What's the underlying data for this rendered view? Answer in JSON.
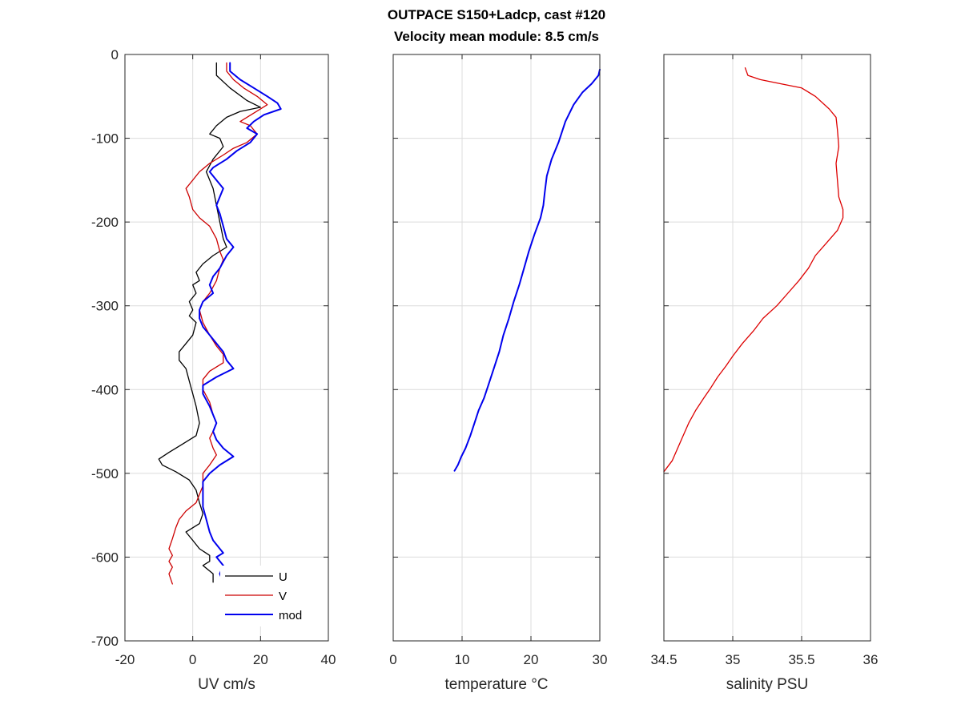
{
  "figure": {
    "title_line1": "OUTPACE S150+Ladcp, cast #120",
    "title_line2": "Velocity mean module:  8.5 cm/s"
  },
  "chart_data": [
    {
      "type": "line",
      "xlabel": "UV cm/s",
      "ylabel": "",
      "xlim": [
        -20,
        40
      ],
      "ylim": [
        -700,
        0
      ],
      "xticks": [
        -20,
        0,
        20,
        40
      ],
      "yticks": [
        0,
        -100,
        -200,
        -300,
        -400,
        -500,
        -600,
        -700
      ],
      "grid": true,
      "legend": {
        "position": "bottom-right",
        "entries": [
          "U",
          "V",
          "mod"
        ]
      },
      "series": [
        {
          "name": "U",
          "color": "#000000",
          "points": [
            [
              7,
              -10
            ],
            [
              7,
              -25
            ],
            [
              11,
              -40
            ],
            [
              16,
              -55
            ],
            [
              20,
              -63
            ],
            [
              14,
              -68
            ],
            [
              10,
              -75
            ],
            [
              7,
              -85
            ],
            [
              5,
              -95
            ],
            [
              8,
              -100
            ],
            [
              9,
              -110
            ],
            [
              6,
              -125
            ],
            [
              4,
              -140
            ],
            [
              6,
              -160
            ],
            [
              7,
              -180
            ],
            [
              8,
              -200
            ],
            [
              9,
              -220
            ],
            [
              10,
              -230
            ],
            [
              6,
              -240
            ],
            [
              3,
              -250
            ],
            [
              1,
              -260
            ],
            [
              2,
              -270
            ],
            [
              0,
              -275
            ],
            [
              1,
              -285
            ],
            [
              -1,
              -295
            ],
            [
              0,
              -305
            ],
            [
              -1,
              -312
            ],
            [
              1,
              -320
            ],
            [
              0,
              -335
            ],
            [
              -2,
              -345
            ],
            [
              -4,
              -355
            ],
            [
              -4,
              -365
            ],
            [
              -2,
              -375
            ],
            [
              -1,
              -390
            ],
            [
              0,
              -405
            ],
            [
              1,
              -420
            ],
            [
              2,
              -440
            ],
            [
              1,
              -455
            ],
            [
              -3,
              -465
            ],
            [
              -7,
              -475
            ],
            [
              -10,
              -483
            ],
            [
              -9,
              -490
            ],
            [
              -5,
              -498
            ],
            [
              -1,
              -508
            ],
            [
              1,
              -520
            ],
            [
              2,
              -535
            ],
            [
              3,
              -548
            ],
            [
              2,
              -560
            ],
            [
              -2,
              -570
            ],
            [
              0,
              -580
            ],
            [
              2,
              -590
            ],
            [
              5,
              -598
            ],
            [
              5,
              -605
            ],
            [
              3,
              -610
            ],
            [
              6,
              -620
            ],
            [
              6,
              -630
            ]
          ]
        },
        {
          "name": "V",
          "color": "#cc0000",
          "points": [
            [
              10,
              -10
            ],
            [
              10,
              -20
            ],
            [
              12,
              -30
            ],
            [
              15,
              -40
            ],
            [
              19,
              -50
            ],
            [
              22,
              -60
            ],
            [
              18,
              -70
            ],
            [
              16,
              -75
            ],
            [
              14,
              -80
            ],
            [
              17,
              -85
            ],
            [
              19,
              -95
            ],
            [
              16,
              -105
            ],
            [
              12,
              -112
            ],
            [
              9,
              -120
            ],
            [
              5,
              -130
            ],
            [
              2,
              -140
            ],
            [
              0,
              -150
            ],
            [
              -2,
              -160
            ],
            [
              -1,
              -170
            ],
            [
              0,
              -185
            ],
            [
              2,
              -195
            ],
            [
              5,
              -205
            ],
            [
              7,
              -220
            ],
            [
              8,
              -235
            ],
            [
              9,
              -245
            ],
            [
              8,
              -255
            ],
            [
              7,
              -270
            ],
            [
              5,
              -285
            ],
            [
              3,
              -295
            ],
            [
              2,
              -305
            ],
            [
              3,
              -320
            ],
            [
              5,
              -335
            ],
            [
              7,
              -348
            ],
            [
              9,
              -358
            ],
            [
              9,
              -368
            ],
            [
              5,
              -378
            ],
            [
              3,
              -388
            ],
            [
              3,
              -400
            ],
            [
              5,
              -415
            ],
            [
              6,
              -430
            ],
            [
              7,
              -440
            ],
            [
              6,
              -450
            ],
            [
              5,
              -458
            ],
            [
              6,
              -470
            ],
            [
              7,
              -478
            ],
            [
              5,
              -490
            ],
            [
              3,
              -500
            ],
            [
              3,
              -515
            ],
            [
              2,
              -525
            ],
            [
              1,
              -535
            ],
            [
              -2,
              -545
            ],
            [
              -4,
              -555
            ],
            [
              -5,
              -565
            ],
            [
              -6,
              -578
            ],
            [
              -7,
              -590
            ],
            [
              -6,
              -598
            ],
            [
              -7,
              -605
            ],
            [
              -6,
              -612
            ],
            [
              -7,
              -620
            ],
            [
              -6,
              -632
            ]
          ]
        },
        {
          "name": "mod",
          "color": "#0000ee",
          "points": [
            [
              11,
              -10
            ],
            [
              11,
              -20
            ],
            [
              14,
              -30
            ],
            [
              18,
              -40
            ],
            [
              22,
              -50
            ],
            [
              25,
              -58
            ],
            [
              26,
              -65
            ],
            [
              21,
              -72
            ],
            [
              18,
              -80
            ],
            [
              16,
              -88
            ],
            [
              19,
              -95
            ],
            [
              17,
              -105
            ],
            [
              13,
              -115
            ],
            [
              10,
              -125
            ],
            [
              6,
              -135
            ],
            [
              5,
              -140
            ],
            [
              7,
              -150
            ],
            [
              9,
              -160
            ],
            [
              8,
              -170
            ],
            [
              7,
              -180
            ],
            [
              8,
              -190
            ],
            [
              9,
              -205
            ],
            [
              10,
              -220
            ],
            [
              12,
              -230
            ],
            [
              10,
              -240
            ],
            [
              8,
              -255
            ],
            [
              6,
              -265
            ],
            [
              5,
              -275
            ],
            [
              6,
              -285
            ],
            [
              3,
              -295
            ],
            [
              2,
              -305
            ],
            [
              2,
              -315
            ],
            [
              3,
              -325
            ],
            [
              5,
              -335
            ],
            [
              7,
              -345
            ],
            [
              9,
              -355
            ],
            [
              10,
              -365
            ],
            [
              12,
              -375
            ],
            [
              7,
              -385
            ],
            [
              3,
              -395
            ],
            [
              3,
              -405
            ],
            [
              5,
              -420
            ],
            [
              6,
              -430
            ],
            [
              7,
              -440
            ],
            [
              6,
              -450
            ],
            [
              7,
              -460
            ],
            [
              9,
              -470
            ],
            [
              12,
              -480
            ],
            [
              8,
              -490
            ],
            [
              5,
              -500
            ],
            [
              3,
              -510
            ],
            [
              3,
              -525
            ],
            [
              3,
              -540
            ],
            [
              4,
              -555
            ],
            [
              5,
              -570
            ],
            [
              6,
              -580
            ],
            [
              8,
              -590
            ],
            [
              9,
              -595
            ],
            [
              7,
              -600
            ],
            [
              9,
              -610
            ],
            [
              8,
              -620
            ],
            [
              9,
              -630
            ]
          ]
        }
      ]
    },
    {
      "type": "line",
      "xlabel": "temperature °C",
      "ylabel": "",
      "xlim": [
        0,
        30
      ],
      "ylim": [
        -700,
        0
      ],
      "xticks": [
        0,
        10,
        20,
        30
      ],
      "yticks": [
        0,
        -100,
        -200,
        -300,
        -400,
        -500,
        -600,
        -700
      ],
      "grid": true,
      "series": [
        {
          "color": "#0000ee",
          "points": [
            [
              30,
              -18
            ],
            [
              29.8,
              -25
            ],
            [
              28.8,
              -35
            ],
            [
              27.5,
              -45
            ],
            [
              26.2,
              -60
            ],
            [
              25,
              -80
            ],
            [
              24,
              -105
            ],
            [
              23,
              -125
            ],
            [
              22.3,
              -145
            ],
            [
              22,
              -165
            ],
            [
              21.8,
              -180
            ],
            [
              21.4,
              -195
            ],
            [
              20.5,
              -215
            ],
            [
              19.7,
              -235
            ],
            [
              19,
              -255
            ],
            [
              18.3,
              -275
            ],
            [
              17.5,
              -295
            ],
            [
              16.8,
              -315
            ],
            [
              16,
              -335
            ],
            [
              15.4,
              -355
            ],
            [
              14.6,
              -375
            ],
            [
              13.8,
              -395
            ],
            [
              13.2,
              -410
            ],
            [
              12.4,
              -425
            ],
            [
              11.8,
              -440
            ],
            [
              11.2,
              -455
            ],
            [
              10.5,
              -470
            ],
            [
              9.9,
              -480
            ],
            [
              9.4,
              -490
            ],
            [
              8.9,
              -497
            ]
          ]
        }
      ]
    },
    {
      "type": "line",
      "xlabel": "salinity PSU",
      "ylabel": "",
      "xlim": [
        34.5,
        36
      ],
      "ylim": [
        -700,
        0
      ],
      "xticks": [
        34.5,
        35,
        35.5,
        36
      ],
      "yticks": [
        0,
        -100,
        -200,
        -300,
        -400,
        -500,
        -600,
        -700
      ],
      "grid": true,
      "series": [
        {
          "color": "#dd0000",
          "points": [
            [
              35.09,
              -16
            ],
            [
              35.11,
              -25
            ],
            [
              35.2,
              -30
            ],
            [
              35.35,
              -35
            ],
            [
              35.5,
              -40
            ],
            [
              35.6,
              -50
            ],
            [
              35.7,
              -65
            ],
            [
              35.75,
              -75
            ],
            [
              35.76,
              -90
            ],
            [
              35.77,
              -110
            ],
            [
              35.75,
              -130
            ],
            [
              35.76,
              -150
            ],
            [
              35.77,
              -170
            ],
            [
              35.8,
              -185
            ],
            [
              35.8,
              -195
            ],
            [
              35.76,
              -210
            ],
            [
              35.68,
              -225
            ],
            [
              35.6,
              -240
            ],
            [
              35.55,
              -255
            ],
            [
              35.48,
              -270
            ],
            [
              35.4,
              -285
            ],
            [
              35.32,
              -300
            ],
            [
              35.22,
              -315
            ],
            [
              35.15,
              -330
            ],
            [
              35.07,
              -345
            ],
            [
              35,
              -360
            ],
            [
              34.95,
              -372
            ],
            [
              34.89,
              -385
            ],
            [
              34.84,
              -398
            ],
            [
              34.79,
              -410
            ],
            [
              34.73,
              -425
            ],
            [
              34.68,
              -440
            ],
            [
              34.64,
              -455
            ],
            [
              34.6,
              -470
            ],
            [
              34.56,
              -485
            ],
            [
              34.5,
              -498
            ]
          ]
        }
      ]
    }
  ]
}
